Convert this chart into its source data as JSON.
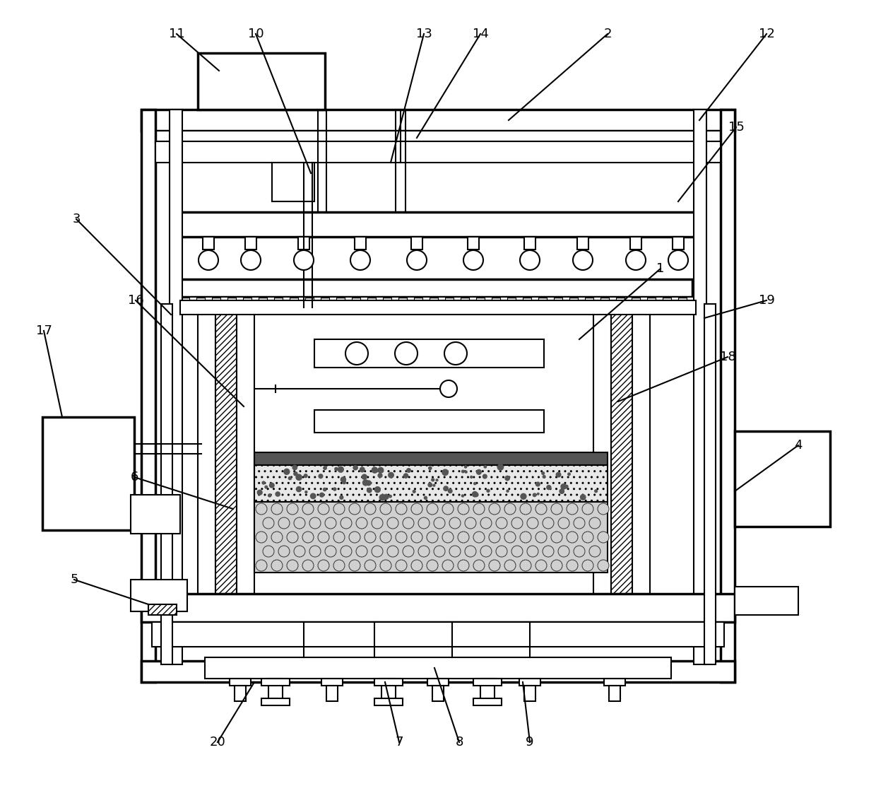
{
  "bg_color": "#ffffff",
  "lc": "#000000",
  "lw": 1.5,
  "lw_thick": 2.5
}
